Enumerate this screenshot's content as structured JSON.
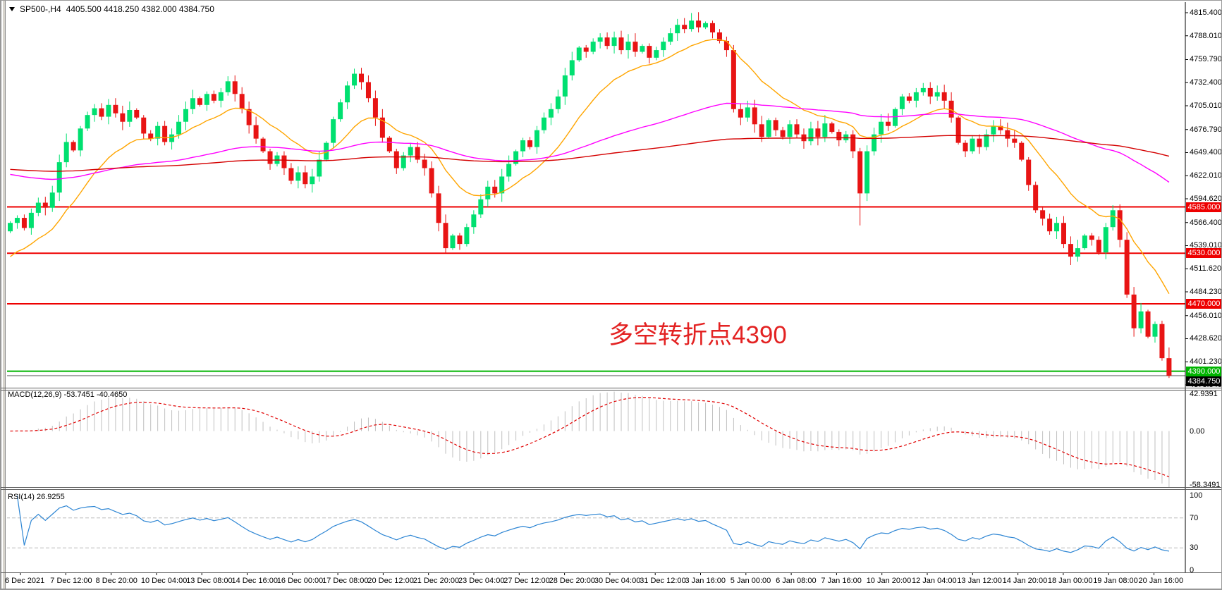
{
  "window": {
    "symbol_period": "SP500-,H4",
    "ohlc_header": "4405.500 4418.250 4382.000 4384.750"
  },
  "annotation": {
    "text": "多空转折点4390",
    "color": "#e32222"
  },
  "indicators": {
    "macd": {
      "label": "MACD(12,26,9)",
      "values": "-53.7451 -40.4650",
      "axis_labels": [
        "42.9391",
        "0.00",
        "-58.3491"
      ]
    },
    "rsi": {
      "label": "RSI(14)",
      "value": "26.9255",
      "axis_labels": [
        "100",
        "70",
        "30",
        "0"
      ],
      "levels": [
        70,
        30
      ]
    }
  },
  "chart_data": {
    "type": "candlestick",
    "symbol": "SP500-",
    "timeframe": "H4",
    "title": "SP500-,H4 4405.500 4418.250 4382.000 4384.750",
    "current_bar": {
      "open": 4405.5,
      "high": 4418.25,
      "low": 4382.0,
      "close": 4384.75
    },
    "ylim": [
      4373.84,
      4815.4
    ],
    "y_ticks": [
      "4815.400",
      "4788.010",
      "4759.790",
      "4732.400",
      "4705.010",
      "4676.790",
      "4649.400",
      "4622.010",
      "4594.620",
      "4566.400",
      "4539.010",
      "4511.620",
      "4484.230",
      "4456.010",
      "4428.620",
      "4401.230",
      "4373.840"
    ],
    "x_labels": [
      "6 Dec 2021",
      "7 Dec 12:00",
      "8 Dec 20:00",
      "10 Dec 04:00",
      "13 Dec 08:00",
      "14 Dec 16:00",
      "16 Dec 00:00",
      "17 Dec 08:00",
      "20 Dec 12:00",
      "21 Dec 20:00",
      "23 Dec 04:00",
      "27 Dec 12:00",
      "28 Dec 20:00",
      "30 Dec 04:00",
      "31 Dec 12:00",
      "3 Jan 16:00",
      "5 Jan 00:00",
      "6 Jan 08:00",
      "7 Jan 16:00",
      "10 Jan 20:00",
      "12 Jan 04:00",
      "13 Jan 12:00",
      "14 Jan 20:00",
      "18 Jan 00:00",
      "19 Jan 08:00",
      "20 Jan 16:00"
    ],
    "hlines": [
      {
        "price": 4585.0,
        "label": "4585.000",
        "color": "#ee0000"
      },
      {
        "price": 4530.0,
        "label": "4530.000",
        "color": "#ee0000"
      },
      {
        "price": 4470.0,
        "label": "4470.000",
        "color": "#ee0000"
      },
      {
        "price": 4390.0,
        "label": "4390.000",
        "color": "#00b400"
      }
    ],
    "price_line": {
      "price": 4384.75,
      "label": "4384.750",
      "line_color": "#6d6d6d",
      "badge_color": "#000000"
    },
    "open_first": 4556,
    "closes": [
      4566,
      4572,
      4560,
      4578,
      4590,
      4584,
      4602,
      4638,
      4662,
      4652,
      4678,
      4694,
      4702,
      4692,
      4706,
      4696,
      4686,
      4700,
      4691,
      4672,
      4666,
      4681,
      4662,
      4671,
      4686,
      4701,
      4714,
      4706,
      4719,
      4711,
      4721,
      4734,
      4719,
      4701,
      4682,
      4666,
      4651,
      4636,
      4646,
      4631,
      4616,
      4626,
      4612,
      4621,
      4641,
      4661,
      4689,
      4709,
      4729,
      4743,
      4733,
      4714,
      4691,
      4667,
      4651,
      4631,
      4646,
      4656,
      4641,
      4631,
      4601,
      4566,
      4536,
      4551,
      4541,
      4561,
      4576,
      4594,
      4609,
      4601,
      4621,
      4636,
      4651,
      4664,
      4656,
      4676,
      4691,
      4701,
      4716,
      4741,
      4759,
      4774,
      4769,
      4781,
      4786,
      4776,
      4786,
      4771,
      4781,
      4769,
      4776,
      4762,
      4771,
      4781,
      4791,
      4801,
      4796,
      4806,
      4798,
      4803,
      4792,
      4782,
      4771,
      4701,
      4691,
      4703,
      4683,
      4668,
      4688,
      4676,
      4668,
      4683,
      4671,
      4663,
      4678,
      4668,
      4684,
      4674,
      4664,
      4671,
      4651,
      4601,
      4651,
      4671,
      4686,
      4681,
      4701,
      4716,
      4711,
      4721,
      4726,
      4716,
      4721,
      4711,
      4691,
      4661,
      4651,
      4666,
      4656,
      4671,
      4681,
      4676,
      4666,
      4661,
      4641,
      4611,
      4581,
      4571,
      4556,
      4566,
      4541,
      4526,
      4536,
      4551,
      4546,
      4531,
      4561,
      4581,
      4546,
      4481,
      4441,
      4461,
      4431,
      4446,
      4405.5,
      4384.75
    ],
    "last_candle": [
      4405.5,
      4418.25,
      4382.0,
      4384.75
    ],
    "wick_overrides": {
      "97": [
        9,
        3
      ],
      "121": [
        4,
        38
      ],
      "159": [
        9,
        4
      ]
    },
    "moving_averages": [
      {
        "name": "ma-fast",
        "color": "#ffa500",
        "alpha": 0.13,
        "seed": 4520
      },
      {
        "name": "ma-medium",
        "color": "#ff00ff",
        "alpha": 0.025,
        "seed": 4625
      },
      {
        "name": "ma-slow",
        "color": "#d40000",
        "alpha": 0.008,
        "seed": 4630
      }
    ],
    "macd_axis_range": [
      -58.3491,
      42.9391
    ],
    "rsi_axis_range": [
      0,
      100
    ],
    "colors": {
      "bull": "#00e070",
      "bear": "#e81414",
      "macd_hist": "#c0c0c0",
      "macd_signal": "#e00000",
      "rsi_line": "#2e86d4",
      "level_dash": "#b8b8b8"
    }
  }
}
